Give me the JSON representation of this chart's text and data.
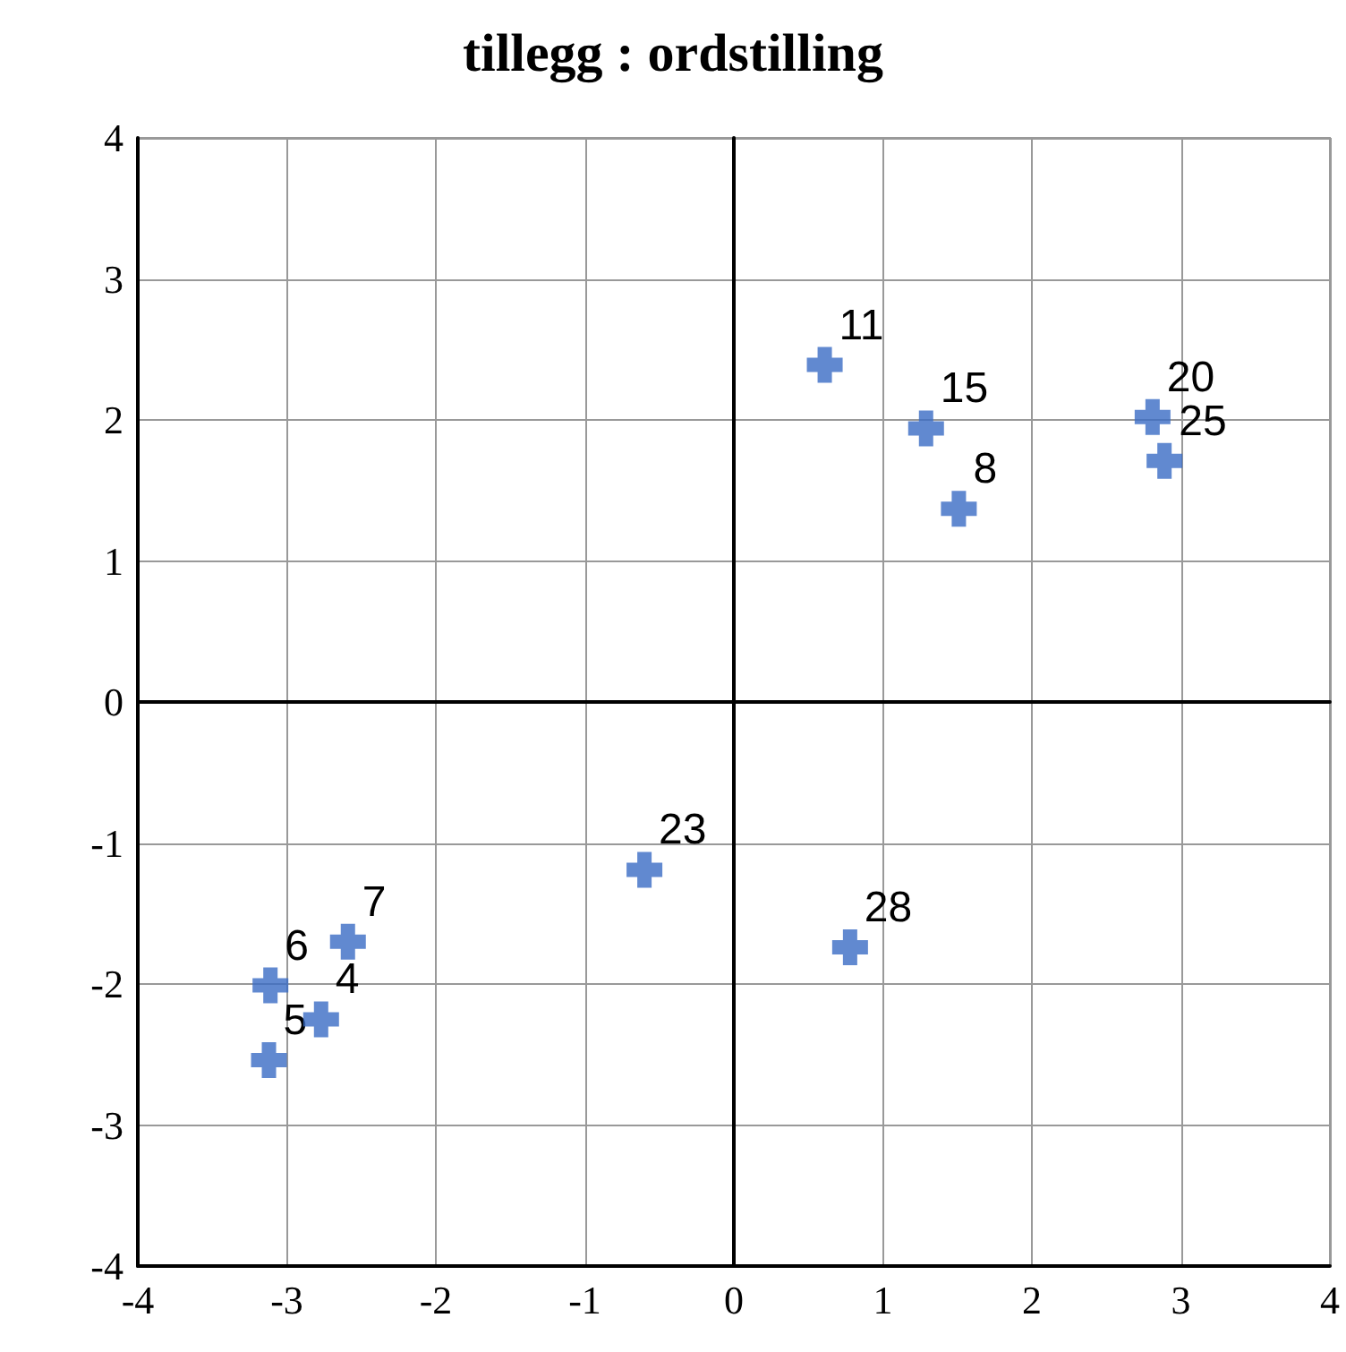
{
  "chart_data": {
    "type": "scatter",
    "title": "tillegg : ordstilling",
    "x": [
      0.61,
      1.29,
      1.51,
      2.81,
      2.89,
      -0.6,
      0.78,
      -2.59,
      -3.11,
      -2.77,
      -3.12
    ],
    "series": [
      {
        "color": "#3a6bc4",
        "values": [
          2.39,
          1.94,
          1.37,
          2.02,
          1.71,
          -1.19,
          -1.74,
          -1.7,
          -2.01,
          -2.25,
          -2.54
        ]
      }
    ],
    "annotations": [
      {
        "text": "11",
        "x": 0.61,
        "y": 2.39
      },
      {
        "text": "15",
        "x": 1.29,
        "y": 1.94
      },
      {
        "text": "8",
        "x": 1.51,
        "y": 1.37
      },
      {
        "text": "20",
        "x": 2.81,
        "y": 2.02
      },
      {
        "text": "25",
        "x": 2.89,
        "y": 1.71
      },
      {
        "text": "23",
        "x": -0.6,
        "y": -1.19
      },
      {
        "text": "28",
        "x": 0.78,
        "y": -1.74
      },
      {
        "text": "7",
        "x": -2.59,
        "y": -1.7
      },
      {
        "text": "6",
        "x": -3.11,
        "y": -2.01
      },
      {
        "text": "4",
        "x": -2.77,
        "y": -2.25
      },
      {
        "text": "5",
        "x": -3.12,
        "y": -2.54
      }
    ],
    "xlim": [
      -4,
      4
    ],
    "xticks": [
      -4,
      -3,
      -2,
      -1,
      0,
      1,
      2,
      3,
      4
    ],
    "ylim": [
      -4,
      4
    ],
    "yticks": [
      -4,
      -3,
      -2,
      -1,
      0,
      1,
      2,
      3,
      4
    ],
    "grid": true,
    "marker": "cross"
  }
}
